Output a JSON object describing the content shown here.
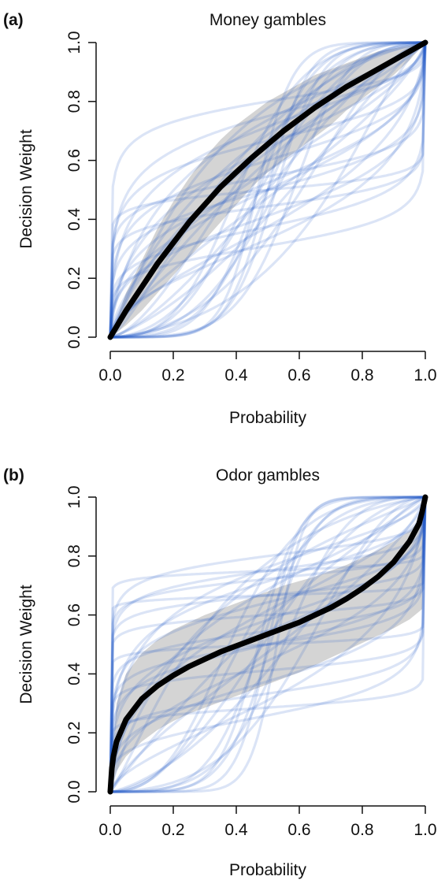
{
  "colors": {
    "individual_curve": "#2255c4",
    "band": "#cccccc",
    "group_curve": "#000000",
    "axis": "#111111"
  },
  "chart_data": [
    {
      "type": "line",
      "panel_label": "(a)",
      "title": "Money gambles",
      "xlabel": "Probability",
      "ylabel": "Decision Weight",
      "xlim": [
        0,
        1
      ],
      "ylim": [
        0,
        1
      ],
      "xticks": [
        "0.0",
        "0.2",
        "0.4",
        "0.6",
        "0.8",
        "1.0"
      ],
      "yticks": [
        "0.0",
        "0.2",
        "0.4",
        "0.6",
        "0.8",
        "1.0"
      ],
      "grid": false,
      "group_curve": {
        "x": [
          0,
          0.05,
          0.1,
          0.15,
          0.2,
          0.25,
          0.3,
          0.35,
          0.4,
          0.45,
          0.5,
          0.55,
          0.6,
          0.65,
          0.7,
          0.75,
          0.8,
          0.85,
          0.9,
          0.95,
          1.0
        ],
        "y": [
          0,
          0.09,
          0.17,
          0.25,
          0.32,
          0.39,
          0.45,
          0.51,
          0.56,
          0.61,
          0.655,
          0.7,
          0.74,
          0.78,
          0.815,
          0.85,
          0.88,
          0.91,
          0.94,
          0.97,
          1.0
        ]
      },
      "band": {
        "x": [
          0,
          0.05,
          0.1,
          0.15,
          0.2,
          0.25,
          0.3,
          0.35,
          0.4,
          0.45,
          0.5,
          0.55,
          0.6,
          0.65,
          0.7,
          0.75,
          0.8,
          0.85,
          0.9,
          0.95,
          1.0
        ],
        "lower": [
          0,
          0.04,
          0.09,
          0.15,
          0.21,
          0.27,
          0.33,
          0.39,
          0.45,
          0.51,
          0.56,
          0.6,
          0.64,
          0.68,
          0.72,
          0.77,
          0.81,
          0.85,
          0.89,
          0.94,
          1.0
        ],
        "upper": [
          0,
          0.15,
          0.26,
          0.37,
          0.46,
          0.54,
          0.61,
          0.67,
          0.72,
          0.76,
          0.8,
          0.83,
          0.86,
          0.89,
          0.91,
          0.93,
          0.95,
          0.97,
          0.98,
          0.99,
          1.0
        ]
      },
      "individual_curves": [
        {
          "gamma": 0.1,
          "delta": 1.0
        },
        {
          "gamma": 0.15,
          "delta": 0.8
        },
        {
          "gamma": 0.2,
          "delta": 1.2
        },
        {
          "gamma": 0.25,
          "delta": 0.6
        },
        {
          "gamma": 0.3,
          "delta": 1.0
        },
        {
          "gamma": 0.3,
          "delta": 2.0
        },
        {
          "gamma": 0.35,
          "delta": 1.5
        },
        {
          "gamma": 0.4,
          "delta": 0.7
        },
        {
          "gamma": 0.4,
          "delta": 3.0
        },
        {
          "gamma": 0.5,
          "delta": 1.0
        },
        {
          "gamma": 0.5,
          "delta": 2.5
        },
        {
          "gamma": 0.55,
          "delta": 0.5
        },
        {
          "gamma": 0.6,
          "delta": 1.8
        },
        {
          "gamma": 0.7,
          "delta": 1.3
        },
        {
          "gamma": 0.8,
          "delta": 0.9
        },
        {
          "gamma": 0.9,
          "delta": 2.2
        },
        {
          "gamma": 1.0,
          "delta": 1.5
        },
        {
          "gamma": 1.2,
          "delta": 0.7
        },
        {
          "gamma": 1.3,
          "delta": 1.0
        },
        {
          "gamma": 1.5,
          "delta": 2.0
        },
        {
          "gamma": 1.6,
          "delta": 0.5
        },
        {
          "gamma": 1.8,
          "delta": 1.2
        },
        {
          "gamma": 2.0,
          "delta": 0.8
        },
        {
          "gamma": 2.2,
          "delta": 1.6
        },
        {
          "gamma": 2.5,
          "delta": 1.0
        },
        {
          "gamma": 2.8,
          "delta": 0.4
        },
        {
          "gamma": 3.0,
          "delta": 1.4
        },
        {
          "gamma": 3.5,
          "delta": 0.7
        },
        {
          "gamma": 4.0,
          "delta": 1.0
        },
        {
          "gamma": 4.5,
          "delta": 1.8
        },
        {
          "gamma": 0.45,
          "delta": 1.1
        },
        {
          "gamma": 0.65,
          "delta": 0.6
        },
        {
          "gamma": 0.75,
          "delta": 2.8
        },
        {
          "gamma": 1.1,
          "delta": 3.5
        },
        {
          "gamma": 1.4,
          "delta": 0.3
        },
        {
          "gamma": 2.4,
          "delta": 2.5
        },
        {
          "gamma": 0.22,
          "delta": 0.45
        },
        {
          "gamma": 0.28,
          "delta": 4.0
        },
        {
          "gamma": 0.85,
          "delta": 1.7
        },
        {
          "gamma": 1.25,
          "delta": 2.4
        }
      ]
    },
    {
      "type": "line",
      "panel_label": "(b)",
      "title": "Odor gambles",
      "xlabel": "Probability",
      "ylabel": "Decision Weight",
      "xlim": [
        0,
        1
      ],
      "ylim": [
        0,
        1
      ],
      "xticks": [
        "0.0",
        "0.2",
        "0.4",
        "0.6",
        "0.8",
        "1.0"
      ],
      "yticks": [
        "0.0",
        "0.2",
        "0.4",
        "0.6",
        "0.8",
        "1.0"
      ],
      "grid": false,
      "group_curve": {
        "x": [
          0,
          0.005,
          0.01,
          0.02,
          0.05,
          0.1,
          0.15,
          0.2,
          0.25,
          0.3,
          0.35,
          0.4,
          0.45,
          0.5,
          0.55,
          0.6,
          0.65,
          0.7,
          0.75,
          0.8,
          0.85,
          0.9,
          0.95,
          0.98,
          0.99,
          1.0
        ],
        "y": [
          0,
          0.08,
          0.12,
          0.17,
          0.245,
          0.315,
          0.36,
          0.395,
          0.425,
          0.45,
          0.475,
          0.495,
          0.515,
          0.535,
          0.555,
          0.575,
          0.6,
          0.625,
          0.655,
          0.69,
          0.73,
          0.78,
          0.85,
          0.91,
          0.95,
          1.0
        ]
      },
      "band": {
        "x": [
          0,
          0.02,
          0.05,
          0.1,
          0.15,
          0.2,
          0.25,
          0.3,
          0.35,
          0.4,
          0.45,
          0.5,
          0.55,
          0.6,
          0.65,
          0.7,
          0.75,
          0.8,
          0.85,
          0.9,
          0.95,
          0.99,
          1.0
        ],
        "lower": [
          0,
          0.07,
          0.12,
          0.17,
          0.21,
          0.24,
          0.265,
          0.285,
          0.305,
          0.325,
          0.345,
          0.365,
          0.385,
          0.405,
          0.43,
          0.455,
          0.48,
          0.505,
          0.53,
          0.555,
          0.585,
          0.62,
          1.0
        ],
        "upper": [
          0,
          0.3,
          0.4,
          0.47,
          0.515,
          0.55,
          0.575,
          0.6,
          0.62,
          0.64,
          0.66,
          0.68,
          0.7,
          0.715,
          0.73,
          0.75,
          0.77,
          0.795,
          0.82,
          0.85,
          0.885,
          0.93,
          1.0
        ]
      },
      "individual_curves": [
        {
          "gamma": 0.05,
          "delta": 1.0
        },
        {
          "gamma": 0.08,
          "delta": 1.5
        },
        {
          "gamma": 0.1,
          "delta": 0.7
        },
        {
          "gamma": 0.12,
          "delta": 2.0
        },
        {
          "gamma": 0.15,
          "delta": 1.2
        },
        {
          "gamma": 0.18,
          "delta": 0.5
        },
        {
          "gamma": 0.2,
          "delta": 3.0
        },
        {
          "gamma": 0.25,
          "delta": 1.0
        },
        {
          "gamma": 0.3,
          "delta": 1.8
        },
        {
          "gamma": 0.35,
          "delta": 0.6
        },
        {
          "gamma": 0.4,
          "delta": 2.5
        },
        {
          "gamma": 0.45,
          "delta": 1.2
        },
        {
          "gamma": 0.5,
          "delta": 0.8
        },
        {
          "gamma": 0.6,
          "delta": 1.6
        },
        {
          "gamma": 0.7,
          "delta": 2.2
        },
        {
          "gamma": 0.8,
          "delta": 0.9
        },
        {
          "gamma": 1.0,
          "delta": 1.4
        },
        {
          "gamma": 1.3,
          "delta": 0.7
        },
        {
          "gamma": 1.6,
          "delta": 1.1
        },
        {
          "gamma": 2.0,
          "delta": 2.0
        },
        {
          "gamma": 2.5,
          "delta": 0.6
        },
        {
          "gamma": 3.0,
          "delta": 1.3
        },
        {
          "gamma": 3.5,
          "delta": 0.9
        },
        {
          "gamma": 4.0,
          "delta": 1.6
        },
        {
          "gamma": 5.0,
          "delta": 1.0
        },
        {
          "gamma": 6.0,
          "delta": 0.5
        },
        {
          "gamma": 0.06,
          "delta": 3.0
        },
        {
          "gamma": 0.09,
          "delta": 0.4
        },
        {
          "gamma": 0.22,
          "delta": 4.0
        },
        {
          "gamma": 0.28,
          "delta": 0.35
        },
        {
          "gamma": 0.55,
          "delta": 3.2
        },
        {
          "gamma": 0.9,
          "delta": 2.8
        },
        {
          "gamma": 1.2,
          "delta": 3.5
        },
        {
          "gamma": 2.2,
          "delta": 3.0
        },
        {
          "gamma": 0.14,
          "delta": 2.6
        },
        {
          "gamma": 0.65,
          "delta": 0.45
        },
        {
          "gamma": 0.38,
          "delta": 1.4
        },
        {
          "gamma": 1.8,
          "delta": 0.4
        },
        {
          "gamma": 0.04,
          "delta": 2.0
        },
        {
          "gamma": 0.17,
          "delta": 1.0
        }
      ]
    }
  ]
}
